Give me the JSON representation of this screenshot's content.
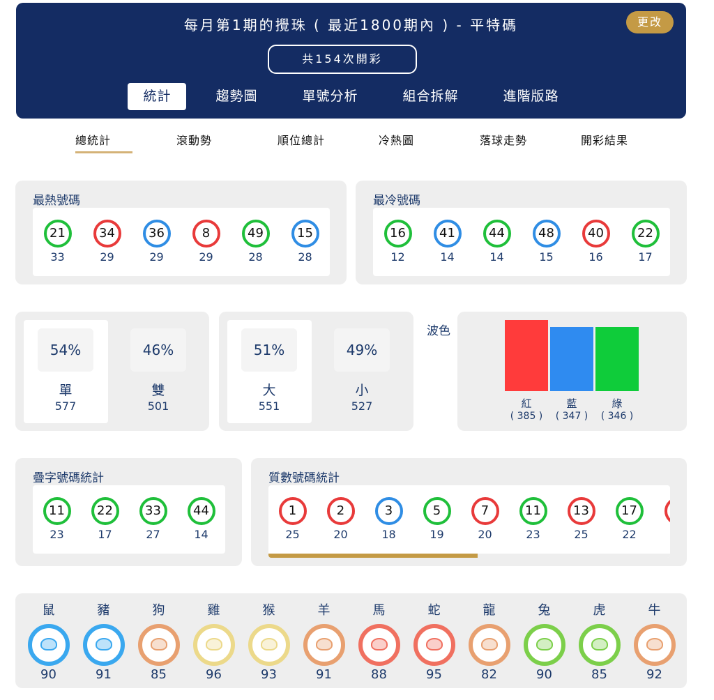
{
  "header": {
    "title": "每月第1期的攪珠 ( 最近1800期內 ) - 平特碼",
    "change_label": "更改",
    "draw_count": "共154次開彩",
    "tabs": [
      "統計",
      "趨勢圖",
      "單號分析",
      "組合拆解",
      "進階版路"
    ]
  },
  "subtabs": [
    "總統計",
    "滾動勢",
    "順位總計",
    "冷熱圖",
    "落球走勢",
    "開彩結果"
  ],
  "colors": {
    "red": "#e83a3a",
    "blue": "#2f8de4",
    "green": "#1fbf3a",
    "navy": "#142c63",
    "gold": "#c49a45"
  },
  "hot": {
    "title": "最熱號碼",
    "items": [
      {
        "n": "21",
        "c": "green",
        "count": "33"
      },
      {
        "n": "34",
        "c": "red",
        "count": "29"
      },
      {
        "n": "36",
        "c": "blue",
        "count": "29"
      },
      {
        "n": "8",
        "c": "red",
        "count": "29"
      },
      {
        "n": "49",
        "c": "green",
        "count": "28"
      },
      {
        "n": "15",
        "c": "blue",
        "count": "28"
      }
    ]
  },
  "cold": {
    "title": "最冷號碼",
    "items": [
      {
        "n": "16",
        "c": "green",
        "count": "12"
      },
      {
        "n": "41",
        "c": "blue",
        "count": "14"
      },
      {
        "n": "44",
        "c": "green",
        "count": "14"
      },
      {
        "n": "48",
        "c": "blue",
        "count": "15"
      },
      {
        "n": "40",
        "c": "red",
        "count": "16"
      },
      {
        "n": "22",
        "c": "green",
        "count": "17"
      }
    ]
  },
  "odd_even": [
    {
      "pct": "54%",
      "label": "單",
      "count": "577"
    },
    {
      "pct": "46%",
      "label": "雙",
      "count": "501"
    }
  ],
  "big_small": [
    {
      "pct": "51%",
      "label": "大",
      "count": "551"
    },
    {
      "pct": "49%",
      "label": "小",
      "count": "527"
    }
  ],
  "wave": {
    "title": "波色",
    "bars": [
      {
        "label": "紅",
        "count": "( 385 )",
        "value": 385,
        "color": "#ff3b3b"
      },
      {
        "label": "藍",
        "count": "( 347 )",
        "value": 347,
        "color": "#2f8bf0"
      },
      {
        "label": "綠",
        "count": "( 346 )",
        "value": 346,
        "color": "#0fcc3a"
      }
    ]
  },
  "double": {
    "title": "疊字號碼統計",
    "items": [
      {
        "n": "11",
        "c": "green",
        "count": "23"
      },
      {
        "n": "22",
        "c": "green",
        "count": "17"
      },
      {
        "n": "33",
        "c": "green",
        "count": "27"
      },
      {
        "n": "44",
        "c": "green",
        "count": "14"
      }
    ]
  },
  "prime": {
    "title": "質數號碼統計",
    "scroll_progress": 0.52,
    "items": [
      {
        "n": "1",
        "c": "red",
        "count": "25"
      },
      {
        "n": "2",
        "c": "red",
        "count": "20"
      },
      {
        "n": "3",
        "c": "blue",
        "count": "18"
      },
      {
        "n": "5",
        "c": "green",
        "count": "19"
      },
      {
        "n": "7",
        "c": "red",
        "count": "20"
      },
      {
        "n": "11",
        "c": "green",
        "count": "23"
      },
      {
        "n": "13",
        "c": "red",
        "count": "25"
      },
      {
        "n": "17",
        "c": "green",
        "count": "22"
      }
    ]
  },
  "zodiac": [
    {
      "name": "鼠",
      "icon": "rat-icon",
      "color": "#3aa8ef",
      "count": "90"
    },
    {
      "name": "豬",
      "icon": "pig-icon",
      "color": "#3aa8ef",
      "count": "91"
    },
    {
      "name": "狗",
      "icon": "dog-icon",
      "color": "#e8a070",
      "count": "85"
    },
    {
      "name": "雞",
      "icon": "rooster-icon",
      "color": "#ecd98a",
      "count": "96"
    },
    {
      "name": "猴",
      "icon": "monkey-icon",
      "color": "#ecd98a",
      "count": "93"
    },
    {
      "name": "羊",
      "icon": "goat-icon",
      "color": "#e8a070",
      "count": "91"
    },
    {
      "name": "馬",
      "icon": "horse-icon",
      "color": "#f07060",
      "count": "88"
    },
    {
      "name": "蛇",
      "icon": "snake-icon",
      "color": "#f07060",
      "count": "95"
    },
    {
      "name": "龍",
      "icon": "dragon-icon",
      "color": "#e8a070",
      "count": "82"
    },
    {
      "name": "兔",
      "icon": "rabbit-icon",
      "color": "#7ccf4a",
      "count": "90"
    },
    {
      "name": "虎",
      "icon": "tiger-icon",
      "color": "#7ccf4a",
      "count": "85"
    },
    {
      "name": "牛",
      "icon": "ox-icon",
      "color": "#e8a070",
      "count": "92"
    }
  ]
}
